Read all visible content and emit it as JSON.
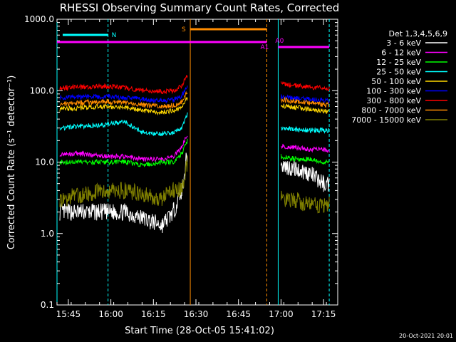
{
  "chart_data": {
    "type": "line",
    "title": "RHESSI Observing Summary Count Rates, Corrected",
    "xlabel": "Start Time (28-Oct-05 15:41:02)",
    "ylabel": "Corrected Count Rate (s⁻¹ detector⁻¹)",
    "ylog": true,
    "ylim": [
      0.1,
      1000
    ],
    "xlim": [
      "15:41",
      "17:20"
    ],
    "xticks": [
      "15:45",
      "16:00",
      "16:15",
      "16:30",
      "16:45",
      "17:00",
      "17:15"
    ],
    "yticks": [
      "0.1",
      "1.0",
      "10.0",
      "100.0",
      "1000.0"
    ],
    "legend_title": "Det 1,3,4,5,6,9",
    "legend_position": "right",
    "x_times": [
      "15:42",
      "15:50",
      "15:58",
      "16:05",
      "16:12",
      "16:18",
      "16:22",
      "16:25",
      "16:27",
      "16:58",
      "16:59",
      "17:00",
      "17:05",
      "17:10",
      "17:15",
      "17:17"
    ],
    "series": [
      {
        "name": "3 - 6 keV",
        "color": "#ffffff",
        "values": [
          2,
          2,
          2,
          2,
          1.6,
          1.3,
          2,
          4,
          14,
          null,
          null,
          9,
          8,
          7,
          5,
          5
        ]
      },
      {
        "name": "6 - 12 keV",
        "color": "#ff00ff",
        "values": [
          13,
          13,
          12,
          12,
          11,
          11,
          12,
          16,
          25,
          null,
          null,
          17,
          16,
          15,
          15,
          14
        ]
      },
      {
        "name": "12 - 25 keV",
        "color": "#00ff00",
        "values": [
          10,
          10,
          10,
          10,
          9,
          10,
          10,
          13,
          20,
          null,
          null,
          12,
          11,
          11,
          10,
          10
        ]
      },
      {
        "name": "25 - 50 keV",
        "color": "#00ffff",
        "values": [
          30,
          32,
          33,
          37,
          25,
          25,
          26,
          30,
          48,
          null,
          null,
          30,
          29,
          28,
          28,
          28
        ]
      },
      {
        "name": "50 - 100 keV",
        "color": "#ffd700",
        "values": [
          55,
          58,
          60,
          58,
          52,
          50,
          52,
          58,
          80,
          null,
          null,
          62,
          58,
          55,
          52,
          50
        ]
      },
      {
        "name": "100 - 300 keV",
        "color": "#0000ff",
        "values": [
          80,
          82,
          83,
          80,
          75,
          72,
          74,
          85,
          120,
          null,
          null,
          82,
          78,
          75,
          73,
          72
        ]
      },
      {
        "name": "300 - 800 keV",
        "color": "#ff0000",
        "values": [
          110,
          112,
          115,
          110,
          100,
          98,
          100,
          115,
          170,
          null,
          null,
          125,
          118,
          112,
          108,
          106
        ]
      },
      {
        "name": "800 - 7000 keV",
        "color": "#ff8c00",
        "values": [
          65,
          68,
          70,
          68,
          62,
          60,
          62,
          70,
          100,
          null,
          null,
          75,
          70,
          67,
          64,
          63
        ]
      },
      {
        "name": "7000 - 15000 keV",
        "color": "#808000",
        "values": [
          3,
          3.5,
          4,
          4,
          3.5,
          3,
          4,
          4,
          10,
          null,
          null,
          3,
          3,
          2.5,
          2.5,
          2.5
        ]
      }
    ],
    "annotations": [
      {
        "label": "N",
        "time": "15:59",
        "segment": [
          "15:43",
          "15:59"
        ],
        "color": "#00ffff"
      },
      {
        "label": "S",
        "time": "16:28",
        "segment": [
          "16:28",
          "16:55"
        ],
        "color": "#ff8c00"
      },
      {
        "label": "A1",
        "time": "16:55",
        "segment": [
          "15:41",
          "16:55"
        ],
        "color": "#ff00ff"
      },
      {
        "label": "A0",
        "time": "16:59",
        "segment": [
          "16:59",
          "17:17"
        ],
        "color": "#ff00ff"
      }
    ],
    "vertical_markers": [
      {
        "time": "15:41",
        "color": "#00ffff",
        "style": "solid"
      },
      {
        "time": "15:59",
        "color": "#00ffff",
        "style": "dashed"
      },
      {
        "time": "16:28",
        "color": "#ff8c00",
        "style": "solid"
      },
      {
        "time": "16:55",
        "color": "#ff8c00",
        "style": "dashed"
      },
      {
        "time": "16:59",
        "color": "#00ffff",
        "style": "solid"
      },
      {
        "time": "17:17",
        "color": "#00ffff",
        "style": "dashed"
      }
    ],
    "x_gap": [
      "16:28",
      "16:58"
    ]
  },
  "footer": {
    "date": "20-Oct-2021 20:01"
  }
}
